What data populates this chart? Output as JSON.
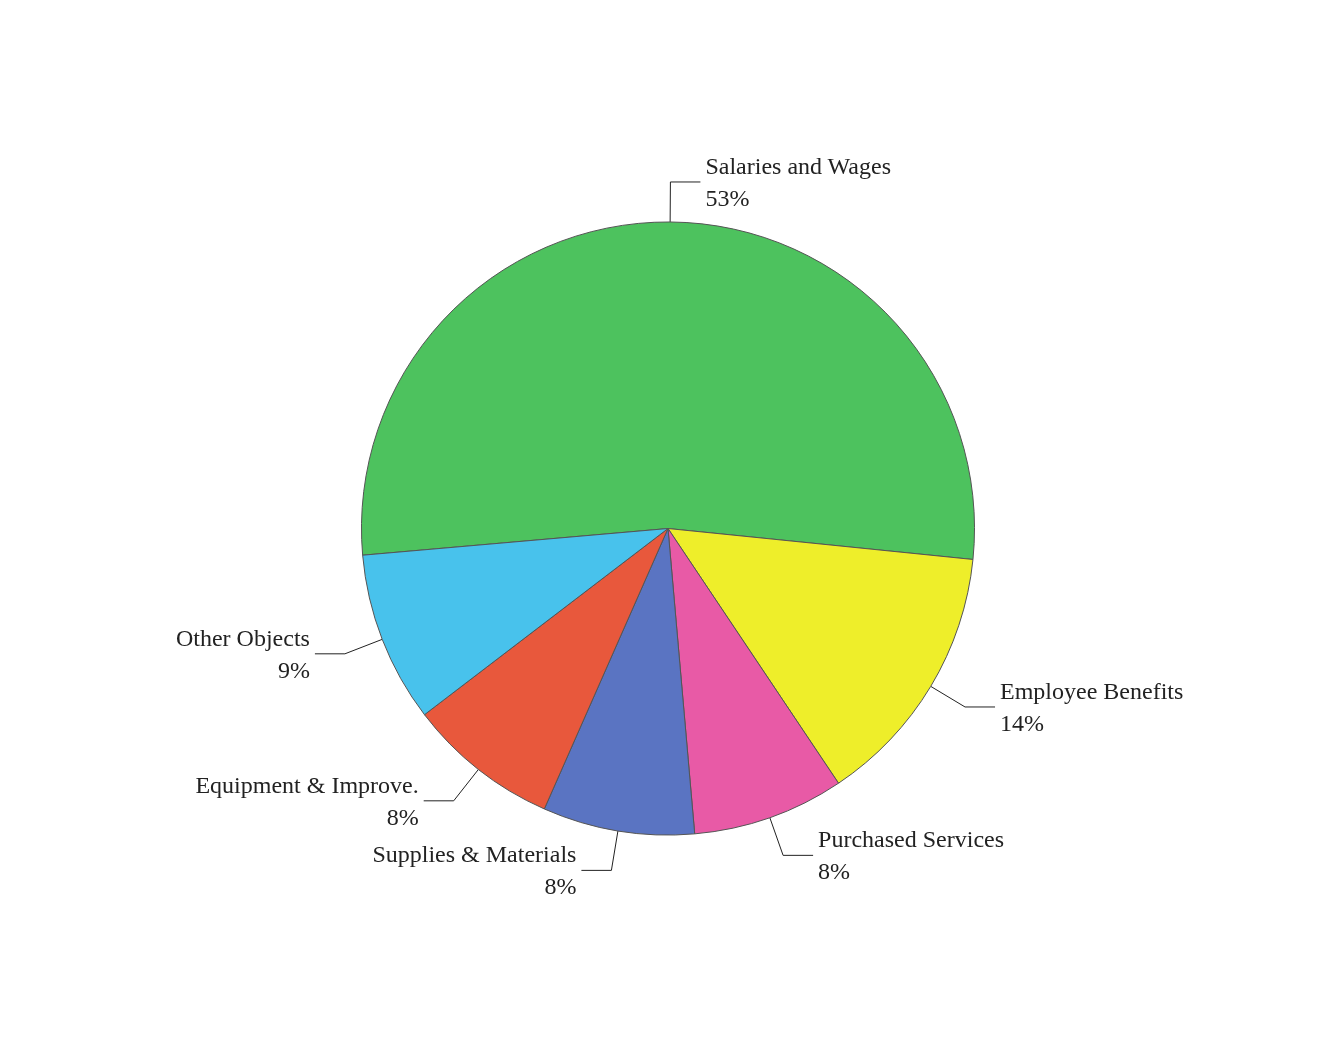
{
  "chart_data": {
    "type": "pie",
    "categories": [
      "Salaries and Wages",
      "Employee Benefits",
      "Purchased Services",
      "Supplies & Materials",
      "Equipment & Improve.",
      "Other Objects"
    ],
    "values": [
      53,
      14,
      8,
      8,
      8,
      9
    ],
    "value_labels": [
      "53%",
      "14%",
      "8%",
      "8%",
      "8%",
      "9%"
    ],
    "colors": [
      "#4dc25e",
      "#eeee2a",
      "#e85aa6",
      "#5a74c2",
      "#e8583c",
      "#48c2ec"
    ]
  }
}
